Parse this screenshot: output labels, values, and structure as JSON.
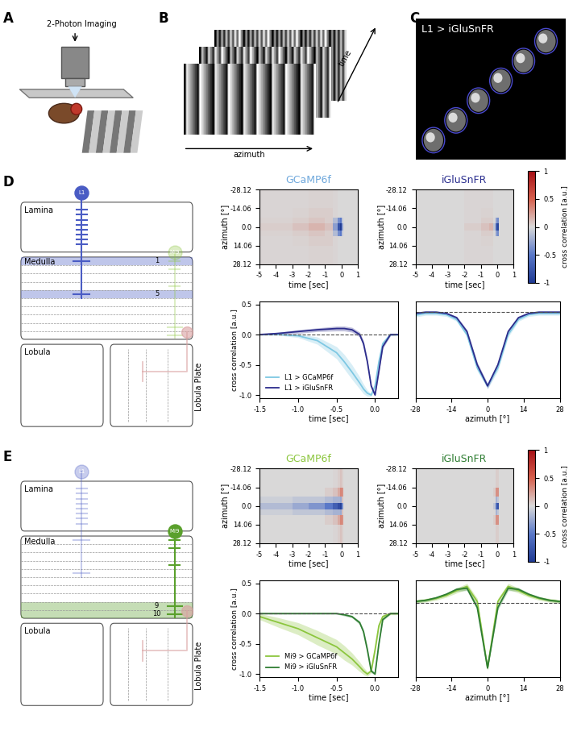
{
  "panels": {
    "A": {
      "label": "A",
      "text": "2-Photon Imaging"
    },
    "B": {
      "label": "B",
      "axes_labels": [
        "time",
        "azimuth"
      ]
    },
    "C": {
      "label": "C",
      "text": "L1 > iGluSnFR"
    },
    "D": {
      "label": "D",
      "regions": [
        "Lamina",
        "Medulla",
        "Lobula",
        "Lobula Plate"
      ],
      "neurons": [
        "L1",
        "Mi9"
      ],
      "colors": [
        "#4a5cc4",
        "#8cc63e"
      ],
      "highlight": "L1",
      "layers": [
        "1",
        "5"
      ]
    },
    "E": {
      "label": "E",
      "regions": [
        "Lamina",
        "Medulla",
        "Lobula",
        "Lobula Plate"
      ],
      "neurons": [
        "L1",
        "Mi9"
      ],
      "colors": [
        "#4a5cc4",
        "#5aa02c"
      ],
      "highlight": "Mi9",
      "layers": [
        "9",
        "10"
      ]
    }
  },
  "chart_data": [
    {
      "type": "heatmap",
      "panel": "D",
      "title": "GCaMP6f",
      "color": "#6fa8dc",
      "xlabel": "time [sec]",
      "ylabel": "azimuth [°]",
      "x_edges": [
        -5,
        -3,
        -2,
        -1,
        -0.5,
        -0.25,
        -0.1,
        0,
        0.1,
        1
      ],
      "y_edges": [
        -28.12,
        -14.06,
        -7.03,
        -2.5,
        2.5,
        7.03,
        14.06,
        28.12
      ],
      "cells": [
        [
          0.02,
          0.02,
          0.03,
          0.03,
          0.02,
          0,
          0,
          0,
          0
        ],
        [
          0.02,
          0.03,
          0.05,
          0.05,
          0.02,
          0,
          0,
          0,
          0
        ],
        [
          0.03,
          0.05,
          0.08,
          0.05,
          -0.15,
          -0.4,
          -0.5,
          -0.1,
          0
        ],
        [
          0.05,
          0.1,
          0.15,
          0.1,
          -0.3,
          -0.8,
          -1.0,
          -0.3,
          0
        ],
        [
          0.03,
          0.05,
          0.08,
          0.05,
          -0.15,
          -0.4,
          -0.5,
          -0.1,
          0
        ],
        [
          0.02,
          0.03,
          0.05,
          0.05,
          0.02,
          0,
          0,
          0,
          0
        ],
        [
          0.02,
          0.02,
          0.03,
          0.03,
          0.02,
          0,
          0,
          0,
          0
        ]
      ],
      "color_range": [
        -1,
        1
      ],
      "xlim": [
        -5,
        1
      ],
      "xticks": [
        -5,
        -4,
        -3,
        -2,
        -1,
        0,
        1
      ],
      "ylim": [
        28.12,
        -28.12
      ],
      "yticks": [
        -28.12,
        -14.06,
        0.0,
        14.06,
        28.12
      ]
    },
    {
      "type": "heatmap",
      "panel": "D",
      "title": "iGluSnFR",
      "color": "#2b2f8f",
      "xlabel": "time [sec]",
      "ylabel": "azimuth [°]",
      "x_edges": [
        -5,
        -3,
        -2,
        -1,
        -0.5,
        -0.25,
        -0.1,
        0,
        0.1,
        1
      ],
      "y_edges": [
        -28.12,
        -14.06,
        -7.03,
        -2.5,
        2.5,
        7.03,
        14.06,
        28.12
      ],
      "cells": [
        [
          0,
          0,
          0.02,
          0.02,
          0.02,
          0,
          0,
          0,
          0
        ],
        [
          0,
          0,
          0.02,
          0.03,
          0.03,
          0,
          0,
          0,
          0
        ],
        [
          0,
          0,
          0.02,
          0.05,
          0.05,
          0,
          -0.3,
          -0.4,
          0
        ],
        [
          0,
          0,
          0.05,
          0.1,
          0.15,
          -0.1,
          -0.7,
          -0.9,
          0
        ],
        [
          0,
          0,
          0.02,
          0.05,
          0.05,
          0,
          -0.3,
          -0.4,
          0
        ],
        [
          0,
          0,
          0.02,
          0.03,
          0.03,
          0,
          0,
          0,
          0
        ],
        [
          0,
          0,
          0.02,
          0.02,
          0.02,
          0,
          0,
          0,
          0
        ]
      ],
      "color_range": [
        -1,
        1
      ],
      "xlim": [
        -5,
        1
      ],
      "xticks": [
        -5,
        -4,
        -3,
        -2,
        -1,
        0,
        1
      ],
      "ylim": [
        28.12,
        -28.12
      ],
      "yticks": [
        -28.12,
        -14.06,
        0.0,
        14.06,
        28.12
      ],
      "colorbar": {
        "label": "cross correlation [a.u.]",
        "ticks": [
          -1,
          -0.5,
          0,
          0.5,
          1
        ]
      }
    },
    {
      "type": "line",
      "panel": "D",
      "xlabel": "time [sec]",
      "ylabel": "cross correlation [a.u.]",
      "x": [
        -1.5,
        -1.25,
        -1.0,
        -0.75,
        -0.5,
        -0.4,
        -0.3,
        -0.2,
        -0.15,
        -0.1,
        -0.05,
        0.0,
        0.05,
        0.1,
        0.2,
        0.3
      ],
      "series": [
        {
          "name": "L1 > GCaMP6f",
          "color": "#7ec8e3",
          "values": [
            0.0,
            0.0,
            -0.02,
            -0.1,
            -0.3,
            -0.45,
            -0.62,
            -0.8,
            -0.9,
            -0.97,
            -1.0,
            -0.85,
            -0.45,
            -0.15,
            0.0,
            0.0
          ],
          "error": [
            0.01,
            0.01,
            0.03,
            0.06,
            0.1,
            0.12,
            0.12,
            0.1,
            0.08,
            0.05,
            0.02,
            0.05,
            0.06,
            0.04,
            0.02,
            0.02
          ]
        },
        {
          "name": "L1 > iGluSnFR",
          "color": "#2c2c8c",
          "values": [
            0.0,
            0.02,
            0.05,
            0.08,
            0.1,
            0.1,
            0.08,
            0.0,
            -0.15,
            -0.45,
            -0.85,
            -1.0,
            -0.6,
            -0.2,
            0.0,
            0.0
          ],
          "error": [
            0.01,
            0.02,
            0.03,
            0.03,
            0.04,
            0.04,
            0.04,
            0.04,
            0.05,
            0.05,
            0.03,
            0.02,
            0.04,
            0.03,
            0.02,
            0.01
          ]
        }
      ],
      "xlim": [
        -1.5,
        0.3
      ],
      "xticks": [
        -1.5,
        -1.0,
        -0.5,
        0.0
      ],
      "ylim": [
        -1.05,
        0.55
      ],
      "yticks": [
        -1.0,
        -0.5,
        0.0,
        0.5
      ],
      "baseline": 0,
      "legend": "lower left"
    },
    {
      "type": "line",
      "panel": "D",
      "xlabel": "azimuth [°]",
      "x": [
        -28,
        -24,
        -20,
        -16,
        -12,
        -8,
        -4,
        0,
        4,
        8,
        12,
        16,
        20,
        24,
        28
      ],
      "series": [
        {
          "color": "#7ec8e3",
          "values": [
            0.32,
            0.35,
            0.35,
            0.33,
            0.25,
            0.0,
            -0.55,
            -0.85,
            -0.55,
            0.0,
            0.25,
            0.33,
            0.35,
            0.35,
            0.35
          ],
          "error": [
            0.03,
            0.03,
            0.03,
            0.03,
            0.03,
            0.04,
            0.05,
            0.05,
            0.05,
            0.04,
            0.03,
            0.03,
            0.03,
            0.03,
            0.03
          ]
        },
        {
          "color": "#2c2c8c",
          "values": [
            0.35,
            0.37,
            0.37,
            0.35,
            0.28,
            0.05,
            -0.5,
            -0.85,
            -0.5,
            0.05,
            0.28,
            0.35,
            0.37,
            0.37,
            0.37
          ],
          "error": [
            0.02,
            0.02,
            0.02,
            0.02,
            0.02,
            0.03,
            0.04,
            0.04,
            0.04,
            0.03,
            0.02,
            0.02,
            0.02,
            0.02,
            0.02
          ]
        }
      ],
      "xlim": [
        -28,
        28
      ],
      "xticks": [
        -28,
        -14,
        0,
        14,
        28
      ],
      "ylim": [
        -1.05,
        0.55
      ],
      "baseline": 0.38,
      "tick_labels": "x"
    },
    {
      "type": "heatmap",
      "panel": "E",
      "title": "GCaMP6f",
      "color": "#8cc63e",
      "xlabel": "time [sec]",
      "ylabel": "azimuth [°]",
      "x_edges": [
        -5,
        -3,
        -2,
        -1,
        -0.5,
        -0.25,
        -0.1,
        0,
        0.1,
        1
      ],
      "y_edges": [
        -28.12,
        -14.06,
        -7.03,
        -2.5,
        2.5,
        7.03,
        14.06,
        28.12
      ],
      "cells": [
        [
          0,
          0,
          0,
          0,
          0.02,
          0.05,
          0.1,
          0.05,
          0
        ],
        [
          0,
          0,
          0,
          0.05,
          0.1,
          0.2,
          0.35,
          0.3,
          0
        ],
        [
          -0.05,
          -0.1,
          -0.1,
          -0.15,
          -0.2,
          -0.2,
          -0.25,
          0.1,
          0
        ],
        [
          -0.15,
          -0.25,
          -0.35,
          -0.5,
          -0.7,
          -0.85,
          -0.95,
          -0.4,
          0
        ],
        [
          -0.05,
          -0.1,
          -0.1,
          -0.15,
          -0.2,
          -0.2,
          -0.25,
          0.1,
          0
        ],
        [
          0,
          0,
          0,
          0.05,
          0.1,
          0.2,
          0.35,
          0.3,
          0
        ],
        [
          0,
          0,
          0,
          0,
          0.02,
          0.05,
          0.1,
          0.05,
          0
        ]
      ],
      "color_range": [
        -1,
        1
      ],
      "xlim": [
        -5,
        1
      ],
      "xticks": [
        -5,
        -4,
        -3,
        -2,
        -1,
        0,
        1
      ],
      "ylim": [
        28.12,
        -28.12
      ],
      "yticks": [
        -28.12,
        -14.06,
        0.0,
        14.06,
        28.12
      ]
    },
    {
      "type": "heatmap",
      "panel": "E",
      "title": "iGluSnFR",
      "color": "#2e7d32",
      "xlabel": "time [sec]",
      "ylabel": "azimuth [°]",
      "x_edges": [
        -5,
        -3,
        -2,
        -1,
        -0.5,
        -0.25,
        -0.1,
        0,
        0.1,
        1
      ],
      "y_edges": [
        -28.12,
        -14.06,
        -7.03,
        -2.5,
        2.5,
        7.03,
        14.06,
        28.12
      ],
      "cells": [
        [
          0,
          0,
          0,
          0,
          0,
          0,
          0.05,
          0.05,
          0
        ],
        [
          0,
          0,
          0,
          0,
          0,
          0.05,
          0.3,
          0.3,
          0
        ],
        [
          0,
          0,
          0,
          0,
          0,
          0,
          -0.2,
          -0.1,
          0
        ],
        [
          0,
          0,
          0,
          0,
          0,
          -0.1,
          -0.6,
          -0.8,
          0
        ],
        [
          0,
          0,
          0,
          0,
          0,
          0,
          -0.2,
          -0.1,
          0
        ],
        [
          0,
          0,
          0,
          0,
          0,
          0.05,
          0.3,
          0.3,
          0
        ],
        [
          0,
          0,
          0,
          0,
          0,
          0,
          0.05,
          0.05,
          0
        ]
      ],
      "color_range": [
        -1,
        1
      ],
      "xlim": [
        -5,
        1
      ],
      "xticks": [
        -5,
        -4,
        -3,
        -2,
        -1,
        0,
        1
      ],
      "ylim": [
        28.12,
        -28.12
      ],
      "yticks": [
        -28.12,
        -14.06,
        0.0,
        14.06,
        28.12
      ],
      "colorbar": {
        "label": "cross correlation [a.u.]",
        "ticks": [
          -1,
          -0.5,
          0,
          0.5,
          1
        ]
      }
    },
    {
      "type": "line",
      "panel": "E",
      "xlabel": "time [sec]",
      "ylabel": "cross correlation [a.u.]",
      "x": [
        -1.5,
        -1.25,
        -1.0,
        -0.75,
        -0.5,
        -0.4,
        -0.3,
        -0.2,
        -0.15,
        -0.1,
        -0.05,
        0.0,
        0.05,
        0.1,
        0.2,
        0.3
      ],
      "series": [
        {
          "name": "Mi9 > GCaMP6f",
          "color": "#8cc63e",
          "values": [
            -0.05,
            -0.15,
            -0.25,
            -0.4,
            -0.55,
            -0.65,
            -0.75,
            -0.88,
            -0.95,
            -1.0,
            -0.95,
            -0.6,
            -0.2,
            -0.05,
            0.0,
            0.0
          ],
          "error": [
            0.05,
            0.08,
            0.1,
            0.12,
            0.12,
            0.12,
            0.1,
            0.08,
            0.06,
            0.04,
            0.03,
            0.05,
            0.05,
            0.03,
            0.02,
            0.02
          ]
        },
        {
          "name": "Mi9 > iGluSnFR",
          "color": "#2e7d32",
          "values": [
            0.0,
            0.0,
            0.0,
            0.0,
            0.0,
            -0.02,
            -0.05,
            -0.15,
            -0.3,
            -0.6,
            -0.95,
            -1.0,
            -0.5,
            -0.1,
            0.0,
            0.0
          ],
          "error": [
            0.01,
            0.01,
            0.01,
            0.01,
            0.01,
            0.02,
            0.02,
            0.03,
            0.04,
            0.05,
            0.03,
            0.02,
            0.04,
            0.02,
            0.01,
            0.01
          ]
        }
      ],
      "xlim": [
        -1.5,
        0.3
      ],
      "xticks": [
        -1.5,
        -1.0,
        -0.5,
        0.0
      ],
      "ylim": [
        -1.05,
        0.55
      ],
      "yticks": [
        -1.0,
        -0.5,
        0.0,
        0.5
      ],
      "baseline": 0,
      "legend": "lower left"
    },
    {
      "type": "line",
      "panel": "E",
      "xlabel": "azimuth [°]",
      "x": [
        -28,
        -24,
        -20,
        -16,
        -12,
        -8,
        -4,
        0,
        4,
        8,
        12,
        16,
        20,
        24,
        28
      ],
      "series": [
        {
          "color": "#8cc63e",
          "values": [
            0.2,
            0.22,
            0.25,
            0.3,
            0.38,
            0.45,
            0.2,
            -0.9,
            0.2,
            0.45,
            0.38,
            0.3,
            0.25,
            0.22,
            0.2
          ],
          "error": [
            0.03,
            0.03,
            0.03,
            0.03,
            0.04,
            0.05,
            0.05,
            0.04,
            0.05,
            0.05,
            0.04,
            0.03,
            0.03,
            0.03,
            0.03
          ]
        },
        {
          "color": "#2e7d32",
          "values": [
            0.2,
            0.22,
            0.26,
            0.32,
            0.4,
            0.42,
            0.1,
            -0.9,
            0.1,
            0.42,
            0.4,
            0.32,
            0.26,
            0.22,
            0.2
          ],
          "error": [
            0.02,
            0.02,
            0.02,
            0.02,
            0.03,
            0.04,
            0.04,
            0.03,
            0.04,
            0.04,
            0.03,
            0.02,
            0.02,
            0.02,
            0.02
          ]
        }
      ],
      "xlim": [
        -28,
        28
      ],
      "xticks": [
        -28,
        -14,
        0,
        14,
        28
      ],
      "ylim": [
        -1.05,
        0.55
      ],
      "baseline": 0.17,
      "tick_labels": "x"
    }
  ]
}
